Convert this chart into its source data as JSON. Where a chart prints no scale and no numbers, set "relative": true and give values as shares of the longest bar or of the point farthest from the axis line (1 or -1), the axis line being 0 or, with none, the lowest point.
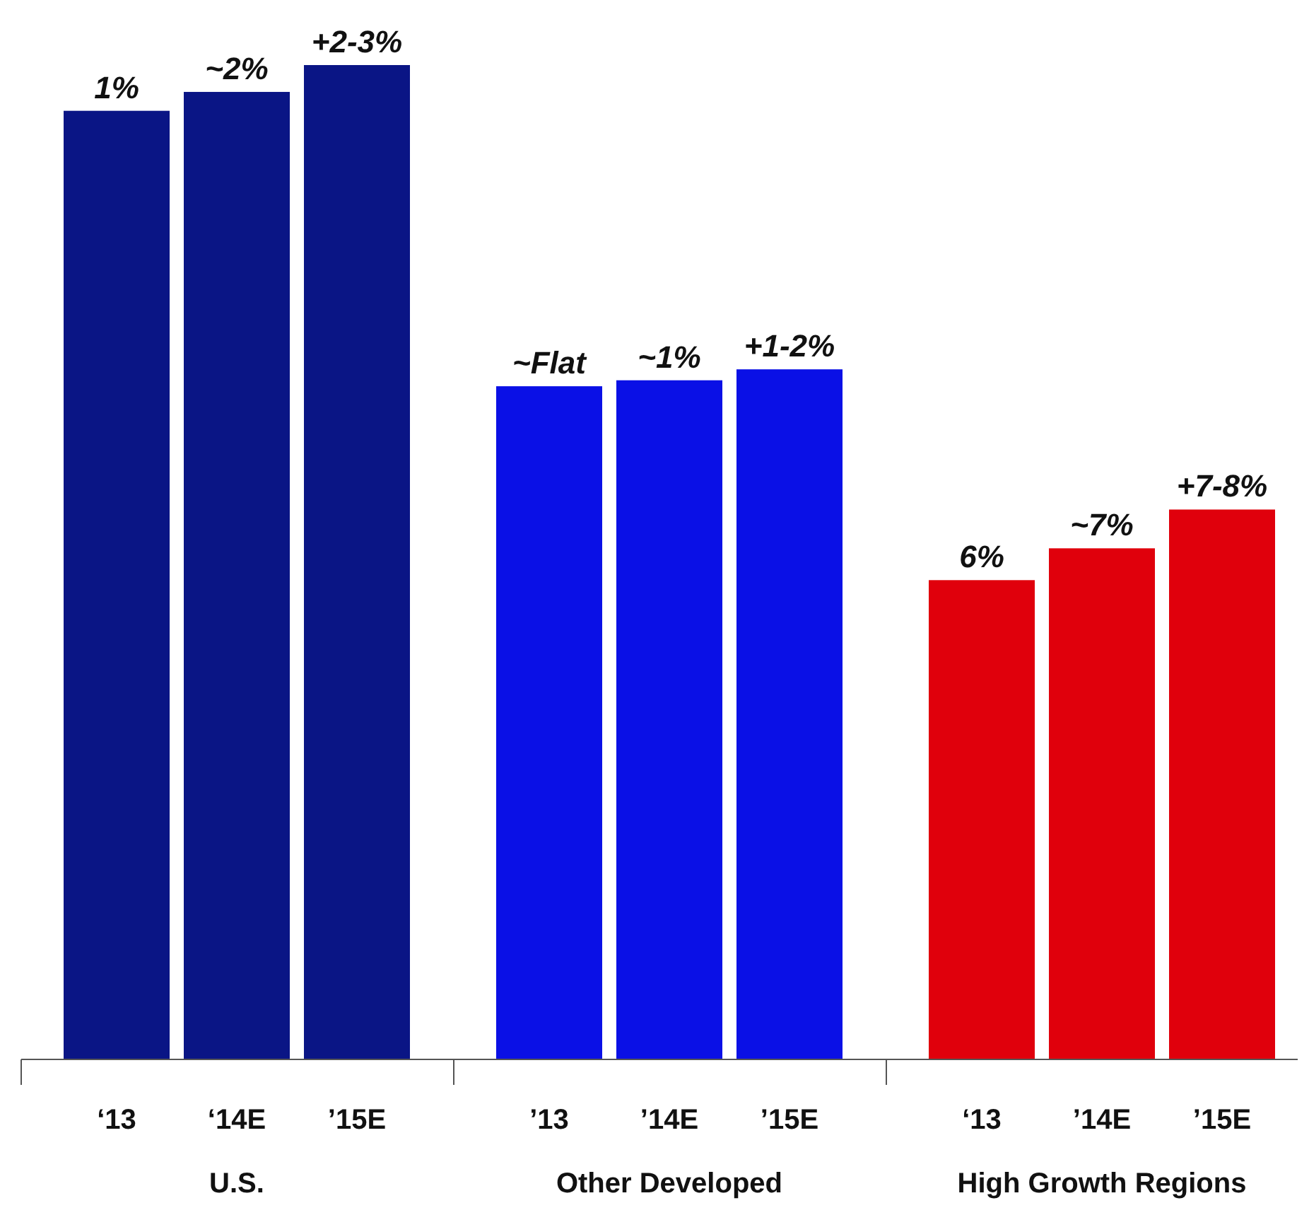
{
  "chart_data": {
    "type": "bar",
    "relative": true,
    "categories": [
      "‘13",
      "‘14E",
      "’15E",
      "’13",
      "’14E",
      "’15E",
      "‘13",
      "’14E",
      "’15E"
    ],
    "values": [
      0.954,
      0.973,
      1,
      0.677,
      0.683,
      0.694,
      0.482,
      0.514,
      0.553
    ],
    "colors": [
      "#0a1585",
      "#0a1585",
      "#0a1585",
      "#0a10e6",
      "#0a10e6",
      "#0a10e6",
      "#e0000c",
      "#e0000c",
      "#e0000c"
    ],
    "annotations": [
      "1%",
      "~2%",
      "+2-3%",
      "~Flat",
      "~1%",
      "+1-2%",
      "6%",
      "~7%",
      "+7-8%",
      "U.S.",
      "Other Developed",
      "High Growth Regions"
    ]
  }
}
